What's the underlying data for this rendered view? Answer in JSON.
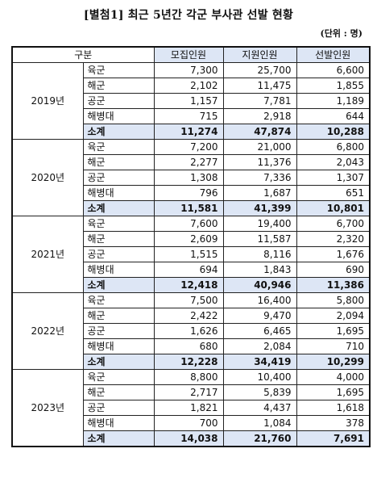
{
  "title": "[별첨1] 최근 5년간 각군 부사관 선발 현황",
  "unit": "(단위 : 명)",
  "table": {
    "headers": [
      "구분",
      "모집인원",
      "지원인원",
      "선발인원"
    ],
    "groups": [
      {
        "year": "2019년",
        "rows": [
          {
            "branch": "육군",
            "recruit": "7,300",
            "apply": "25,700",
            "select": "6,600"
          },
          {
            "branch": "해군",
            "recruit": "2,102",
            "apply": "11,475",
            "select": "1,855"
          },
          {
            "branch": "공군",
            "recruit": "1,157",
            "apply": "7,781",
            "select": "1,189"
          },
          {
            "branch": "해병대",
            "recruit": "715",
            "apply": "2,918",
            "select": "644"
          },
          {
            "branch": "소계",
            "recruit": "11,274",
            "apply": "47,874",
            "select": "10,288"
          }
        ]
      },
      {
        "year": "2020년",
        "rows": [
          {
            "branch": "육군",
            "recruit": "7,200",
            "apply": "21,000",
            "select": "6,800"
          },
          {
            "branch": "해군",
            "recruit": "2,277",
            "apply": "11,376",
            "select": "2,043"
          },
          {
            "branch": "공군",
            "recruit": "1,308",
            "apply": "7,336",
            "select": "1,307"
          },
          {
            "branch": "해병대",
            "recruit": "796",
            "apply": "1,687",
            "select": "651"
          },
          {
            "branch": "소계",
            "recruit": "11,581",
            "apply": "41,399",
            "select": "10,801"
          }
        ]
      },
      {
        "year": "2021년",
        "rows": [
          {
            "branch": "육군",
            "recruit": "7,600",
            "apply": "19,400",
            "select": "6,700"
          },
          {
            "branch": "해군",
            "recruit": "2,609",
            "apply": "11,587",
            "select": "2,320"
          },
          {
            "branch": "공군",
            "recruit": "1,515",
            "apply": "8,116",
            "select": "1,676"
          },
          {
            "branch": "해병대",
            "recruit": "694",
            "apply": "1,843",
            "select": "690"
          },
          {
            "branch": "소계",
            "recruit": "12,418",
            "apply": "40,946",
            "select": "11,386"
          }
        ]
      },
      {
        "year": "2022년",
        "rows": [
          {
            "branch": "육군",
            "recruit": "7,500",
            "apply": "16,400",
            "select": "5,800"
          },
          {
            "branch": "해군",
            "recruit": "2,422",
            "apply": "9,470",
            "select": "2,094"
          },
          {
            "branch": "공군",
            "recruit": "1,626",
            "apply": "6,465",
            "select": "1,695"
          },
          {
            "branch": "해병대",
            "recruit": "680",
            "apply": "2,084",
            "select": "710"
          },
          {
            "branch": "소계",
            "recruit": "12,228",
            "apply": "34,419",
            "select": "10,299"
          }
        ]
      },
      {
        "year": "2023년",
        "rows": [
          {
            "branch": "육군",
            "recruit": "8,800",
            "apply": "10,400",
            "select": "4,000"
          },
          {
            "branch": "해군",
            "recruit": "2,717",
            "apply": "5,839",
            "select": "1,695"
          },
          {
            "branch": "공군",
            "recruit": "1,821",
            "apply": "4,437",
            "select": "1,618"
          },
          {
            "branch": "해병대",
            "recruit": "700",
            "apply": "1,084",
            "select": "378"
          },
          {
            "branch": "소계",
            "recruit": "14,038",
            "apply": "21,760",
            "select": "7,691"
          }
        ]
      }
    ]
  }
}
